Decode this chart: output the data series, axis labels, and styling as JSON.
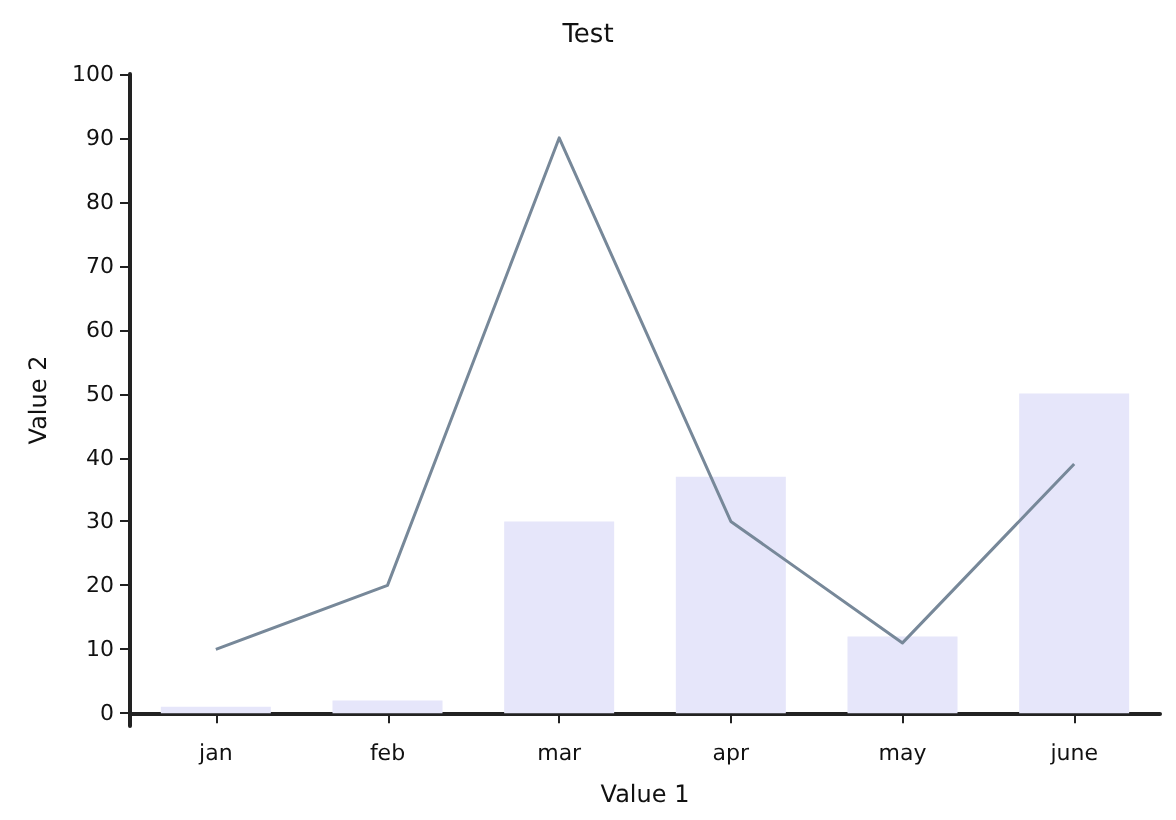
{
  "chart_data": {
    "type": "bar",
    "title": "Test",
    "xlabel": "Value 1",
    "ylabel": "Value 2",
    "categories": [
      "jan",
      "feb",
      "mar",
      "apr",
      "may",
      "june"
    ],
    "series": [
      {
        "color": "#e6e6fa",
        "values": [
          1,
          2,
          30,
          37,
          12,
          50
        ]
      },
      {
        "type": "line",
        "color": "#778899",
        "values": [
          10,
          20,
          90,
          30,
          11,
          39
        ]
      }
    ],
    "ylim": [
      -2,
      100
    ],
    "yticks": [
      0,
      10,
      20,
      30,
      40,
      50,
      60,
      70,
      80,
      90,
      100
    ],
    "grid": false
  }
}
